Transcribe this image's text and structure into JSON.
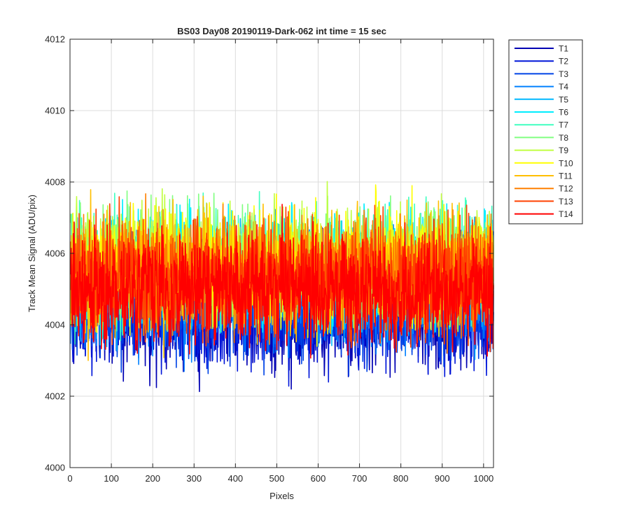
{
  "chart_data": {
    "type": "line",
    "title": "BS03 Day08 20190119-Dark-062 int time = 15 sec",
    "xlabel": "Pixels",
    "ylabel": "Track Mean Signal (ADU/pix)",
    "xlim": [
      0,
      1024
    ],
    "ylim": [
      4000,
      4012
    ],
    "xticks": [
      0,
      100,
      200,
      300,
      400,
      500,
      600,
      700,
      800,
      900,
      1000
    ],
    "yticks": [
      4000,
      4002,
      4004,
      4006,
      4008,
      4010,
      4012
    ],
    "grid": true,
    "legend_position": "outside-top-right",
    "n_points": 1024,
    "series": [
      {
        "name": "T1",
        "color": "#0000b3",
        "mean": 4004.3,
        "spread": 1.1,
        "seed": 11
      },
      {
        "name": "T2",
        "color": "#0016d9",
        "mean": 4004.4,
        "spread": 1.1,
        "seed": 23
      },
      {
        "name": "T3",
        "color": "#0044e6",
        "mean": 4004.6,
        "spread": 1.1,
        "seed": 37
      },
      {
        "name": "T4",
        "color": "#0080ff",
        "mean": 4005.0,
        "spread": 1.1,
        "seed": 41
      },
      {
        "name": "T5",
        "color": "#00b8ff",
        "mean": 4005.3,
        "spread": 1.1,
        "seed": 53
      },
      {
        "name": "T6",
        "color": "#00eeff",
        "mean": 4005.6,
        "spread": 1.1,
        "seed": 67
      },
      {
        "name": "T7",
        "color": "#40ffc0",
        "mean": 4005.7,
        "spread": 1.1,
        "seed": 71
      },
      {
        "name": "T8",
        "color": "#80ff80",
        "mean": 4005.8,
        "spread": 1.1,
        "seed": 83
      },
      {
        "name": "T9",
        "color": "#c0ff40",
        "mean": 4005.7,
        "spread": 1.1,
        "seed": 97
      },
      {
        "name": "T10",
        "color": "#ffff00",
        "mean": 4005.6,
        "spread": 1.1,
        "seed": 101
      },
      {
        "name": "T11",
        "color": "#ffbf00",
        "mean": 4005.5,
        "spread": 1.1,
        "seed": 113
      },
      {
        "name": "T12",
        "color": "#ff8000",
        "mean": 4005.4,
        "spread": 1.1,
        "seed": 127
      },
      {
        "name": "T13",
        "color": "#ff4000",
        "mean": 4005.3,
        "spread": 1.1,
        "seed": 131
      },
      {
        "name": "T14",
        "color": "#ff0000",
        "mean": 4005.0,
        "spread": 1.1,
        "seed": 149
      }
    ]
  }
}
